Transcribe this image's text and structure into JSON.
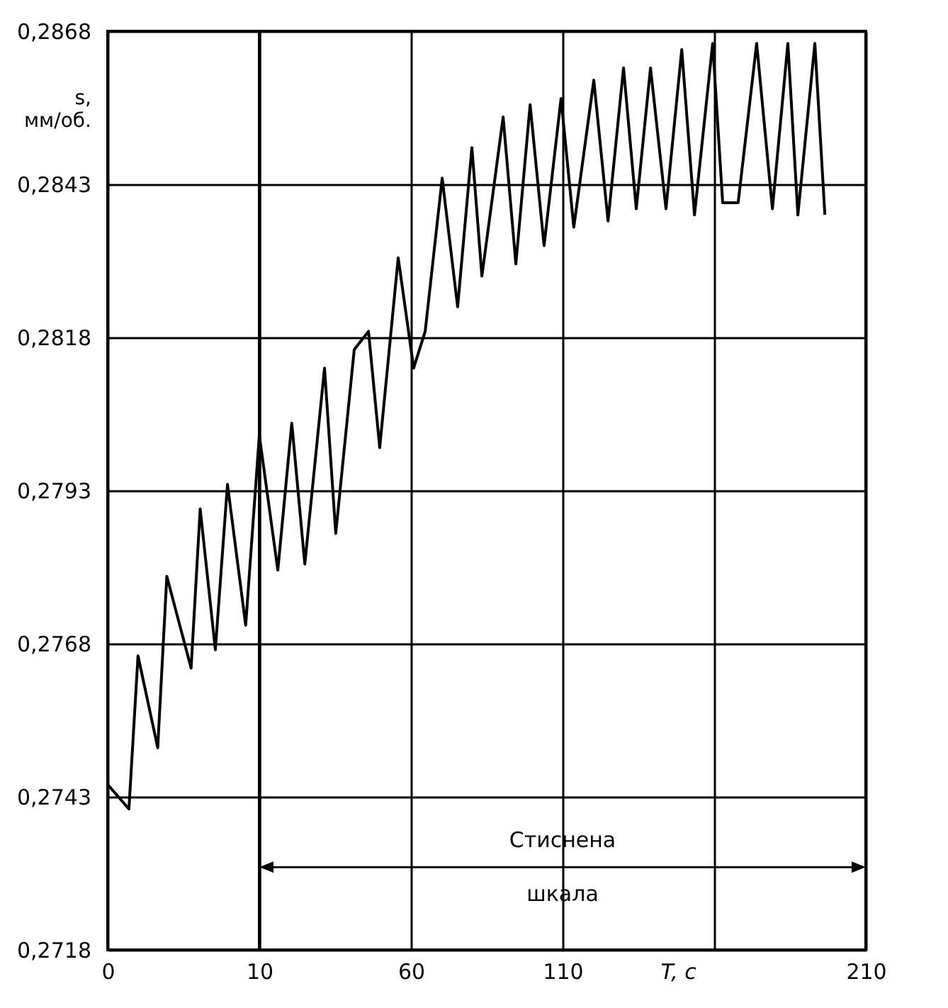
{
  "chart_data": [
    {
      "type": "line",
      "ylabel": "s,\nмм/об.",
      "x": [
        0,
        1.4,
        2.0,
        3.3,
        3.9,
        5.5,
        6.1,
        7.1,
        7.9,
        9.1,
        10.0
      ],
      "series": [
        {
          "color": "#000000",
          "values": [
            0.2745,
            0.2741,
            0.2766,
            0.2751,
            0.2779,
            0.2764,
            0.279,
            0.2767,
            0.2794,
            0.2771,
            0.2802
          ]
        }
      ],
      "xlim": [
        0,
        10
      ],
      "xticks": [
        0,
        10
      ],
      "ylim": [
        0.2718,
        0.2868
      ],
      "yticks": [
        {
          "value": 0.2718,
          "label": "0,2718"
        },
        {
          "value": 0.2743,
          "label": "0,2743"
        },
        {
          "value": 0.2768,
          "label": "0,2768"
        },
        {
          "value": 0.2793,
          "label": "0,2793"
        },
        {
          "value": 0.2818,
          "label": "0,2818"
        },
        {
          "value": 0.2843,
          "label": "0,2843"
        },
        {
          "value": 0.2868,
          "label": "0,2868"
        }
      ],
      "grid": true,
      "marker": "none",
      "line_style": "solid"
    },
    {
      "type": "line",
      "xlabel": "T, c",
      "annotations": [
        "Стиснена шкала"
      ],
      "x": [
        10.0,
        16.1,
        20.7,
        25.0,
        31.5,
        35.2,
        41.3,
        46.0,
        49.7,
        55.8,
        60.9,
        64.7,
        70.3,
        75.4,
        80.1,
        83.4,
        90.4,
        94.6,
        99.3,
        103.9,
        109.5,
        113.7,
        120.3,
        125.0,
        130.1,
        134.3,
        139.0,
        144.1,
        149.3,
        153.5,
        159.5,
        162.8,
        167.9,
        174.0,
        179.2,
        184.3,
        187.6,
        193.2,
        196.5
      ],
      "series": [
        {
          "color": "#000000",
          "values": [
            0.2802,
            0.278,
            0.2804,
            0.2781,
            0.2813,
            0.2786,
            0.2816,
            0.2819,
            0.28,
            0.2831,
            0.2813,
            0.2819,
            0.2844,
            0.2823,
            0.2849,
            0.2828,
            0.2854,
            0.283,
            0.2856,
            0.2833,
            0.2857,
            0.2836,
            0.286,
            0.2837,
            0.2862,
            0.2839,
            0.2862,
            0.2839,
            0.2865,
            0.2838,
            0.2866,
            0.284,
            0.284,
            0.2866,
            0.2839,
            0.2866,
            0.2838,
            0.2866,
            0.2838
          ]
        }
      ],
      "xlim": [
        10,
        210
      ],
      "xticks": [
        {
          "value": 10,
          "label": null
        },
        60,
        110,
        {
          "value": 160,
          "label": null
        },
        210
      ],
      "ylim": [
        0.2718,
        0.2868
      ],
      "yticks": [
        0.2718,
        0.2743,
        0.2768,
        0.2793,
        0.2818,
        0.2843,
        0.2868
      ],
      "tick_labels": "x",
      "grid": true,
      "marker": "none",
      "line_style": "solid"
    }
  ]
}
